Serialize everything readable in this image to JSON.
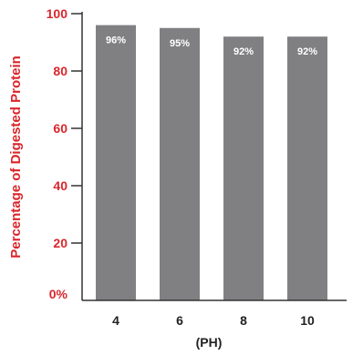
{
  "chart_data": {
    "type": "bar",
    "categories": [
      "4",
      "6",
      "8",
      "10"
    ],
    "values": [
      96,
      95,
      92,
      92
    ],
    "data_labels": [
      "96%",
      "95%",
      "92%",
      "92%"
    ],
    "title": "",
    "xlabel": "(PH)",
    "ylabel": "Percentage of Digested Protein",
    "ylim": [
      0,
      100
    ],
    "yticks": [
      0,
      20,
      40,
      60,
      80,
      100
    ],
    "ytick_labels": [
      "0%",
      "20",
      "40",
      "60",
      "80",
      "100"
    ],
    "grid": false,
    "legend": "none",
    "colors": {
      "bar": "#808083",
      "axis": "#333333",
      "tick_label": "#d9262c",
      "ylabel": "#d9262c",
      "category_label": "#222222",
      "data_label": "#ffffff"
    }
  }
}
